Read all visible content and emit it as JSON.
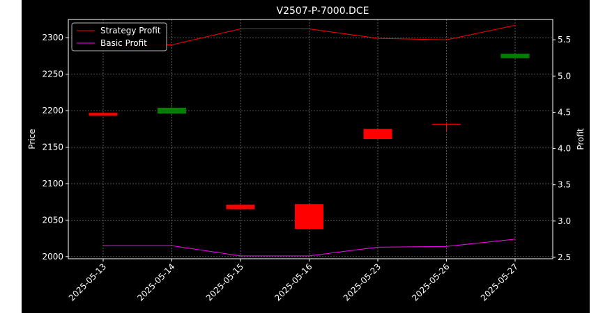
{
  "chart_data": {
    "type": "candlestick",
    "title": "V2507-P-7000.DCE",
    "xlabel": "",
    "ylabel": "Price",
    "y2label": "Profit",
    "categories": [
      "2025-05-13",
      "2025-05-14",
      "2025-05-15",
      "2025-05-16",
      "2025-05-23",
      "2025-05-26",
      "2025-05-27"
    ],
    "ylim": [
      1997,
      2325
    ],
    "y2lim": [
      2.48,
      5.78
    ],
    "yticks": [
      2000,
      2050,
      2100,
      2150,
      2200,
      2250,
      2300
    ],
    "y2ticks": [
      2.5,
      3.0,
      3.5,
      4.0,
      4.5,
      5.0,
      5.5
    ],
    "grid": true,
    "legend_position": "upper-left",
    "candles": [
      {
        "date": "2025-05-13",
        "open": 2197,
        "high": 2197,
        "low": 2193,
        "close": 2193,
        "color": "#ff0000"
      },
      {
        "date": "2025-05-14",
        "open": 2196,
        "high": 2208,
        "low": 2196,
        "close": 2204,
        "color": "#008000"
      },
      {
        "date": "2025-05-15",
        "open": 2071,
        "high": 2071,
        "low": 2065,
        "close": 2065,
        "color": "#ff0000"
      },
      {
        "date": "2025-05-16",
        "open": 2072,
        "high": 2072,
        "low": 2038,
        "close": 2038,
        "color": "#ff0000"
      },
      {
        "date": "2025-05-23",
        "open": 2175,
        "high": 2175,
        "low": 2161,
        "close": 2161,
        "color": "#ff0000"
      },
      {
        "date": "2025-05-26",
        "open": 2182,
        "high": 2184,
        "low": 2172,
        "close": 2182,
        "color": "#ff0000"
      },
      {
        "date": "2025-05-27",
        "open": 2272,
        "high": 2278,
        "low": 2272,
        "close": 2278,
        "color": "#008000"
      }
    ],
    "series": [
      {
        "name": "Strategy Profit",
        "color": "#ff0000",
        "axis": "right",
        "values": [
          5.43,
          5.43,
          5.65,
          5.65,
          5.52,
          5.5,
          5.7
        ]
      },
      {
        "name": "Basic Profit",
        "color": "#ff00ff",
        "axis": "right",
        "values": [
          2.66,
          2.66,
          2.52,
          2.52,
          2.64,
          2.65,
          2.75
        ]
      }
    ]
  }
}
